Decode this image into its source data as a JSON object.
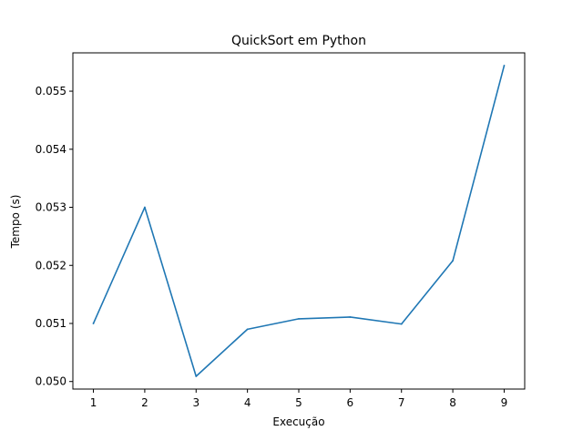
{
  "chart_data": {
    "type": "line",
    "title": "QuickSort em Python",
    "xlabel": "Execução",
    "ylabel": "Tempo (s)",
    "x": [
      1,
      2,
      3,
      4,
      5,
      6,
      7,
      8,
      9
    ],
    "series": [
      {
        "values": [
          0.051,
          0.053,
          0.05009,
          0.0509,
          0.05108,
          0.05111,
          0.05099,
          0.05208,
          0.05544
        ],
        "color": "#1f77b4"
      }
    ],
    "xlim": [
      0.6,
      9.4
    ],
    "ylim": [
      0.04987,
      0.05566
    ],
    "xticks": [
      "1",
      "2",
      "3",
      "4",
      "5",
      "6",
      "7",
      "8",
      "9"
    ],
    "yticks": [
      "0.050",
      "0.051",
      "0.052",
      "0.053",
      "0.054",
      "0.055"
    ],
    "grid": false,
    "legend": false
  }
}
